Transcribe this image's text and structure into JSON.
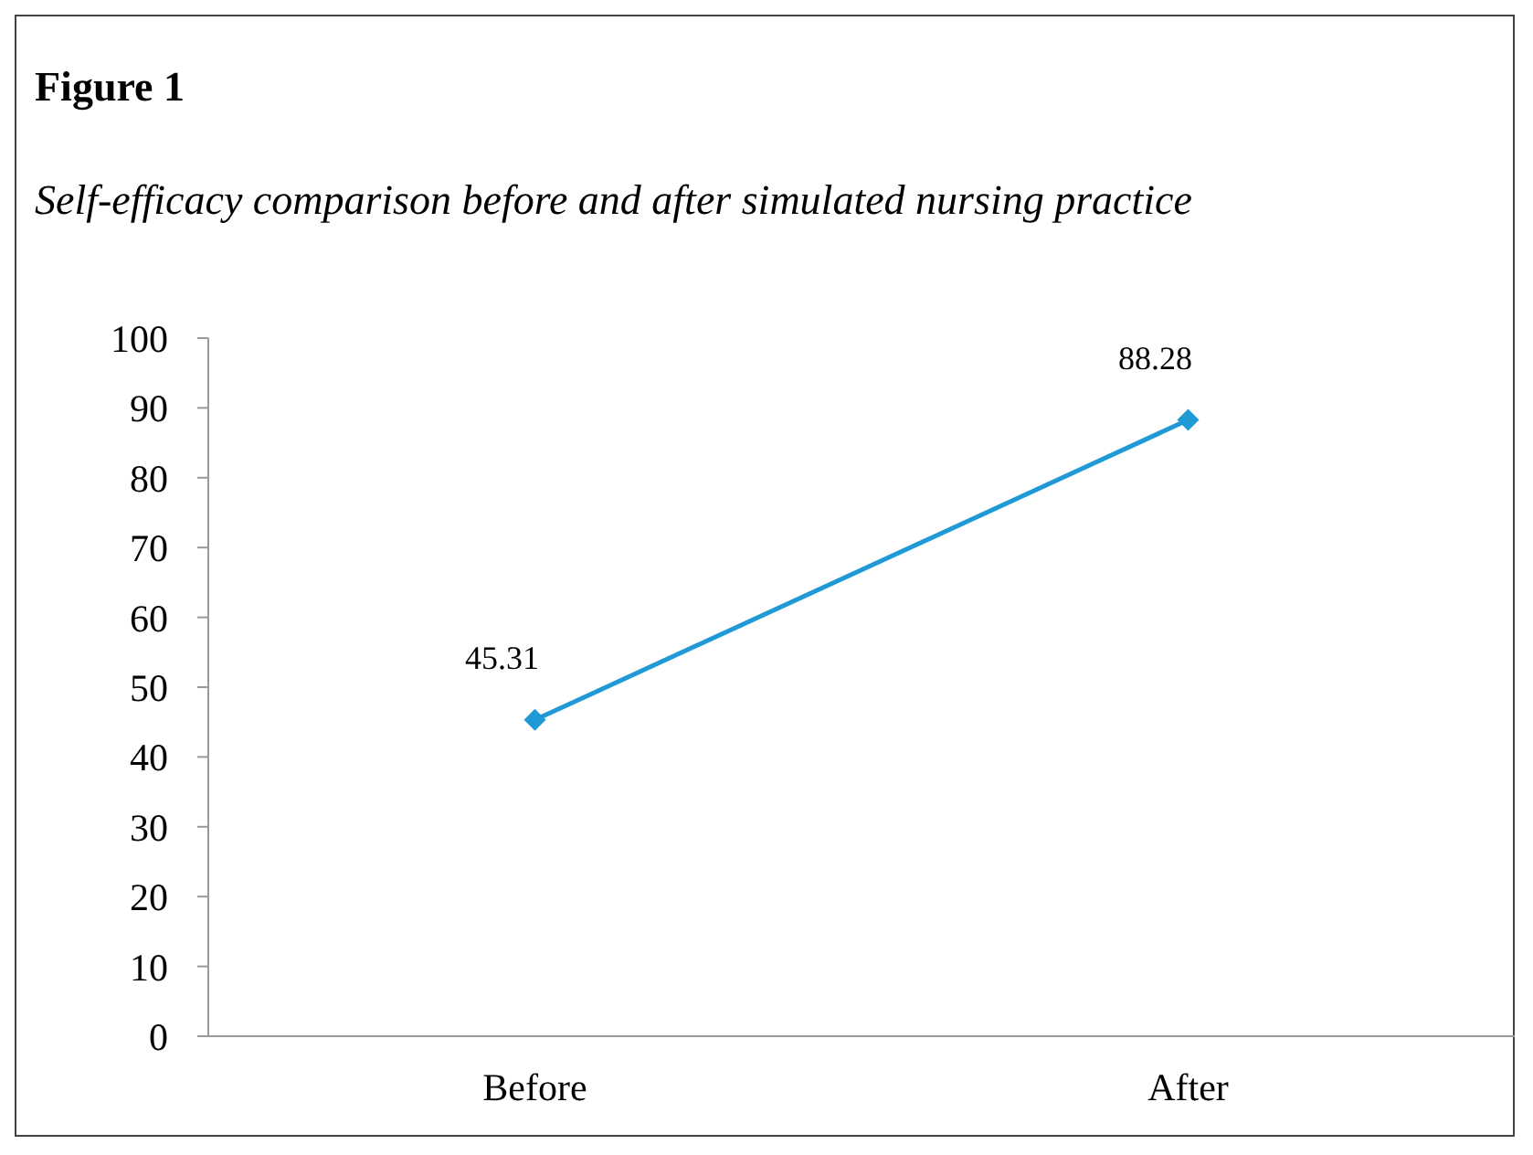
{
  "chart_data": {
    "type": "line",
    "title": "Figure 1",
    "subtitle": "Self-efficacy comparison before and after simulated nursing practice",
    "categories": [
      "Before",
      "After"
    ],
    "series": [
      {
        "color": "#1f9ad6",
        "values": [
          45.31,
          88.28
        ]
      }
    ],
    "ylim": [
      0,
      100
    ],
    "yticks": [
      0,
      10,
      20,
      30,
      40,
      50,
      60,
      70,
      80,
      90,
      100
    ],
    "marker": "diamond",
    "data_labels": true
  }
}
